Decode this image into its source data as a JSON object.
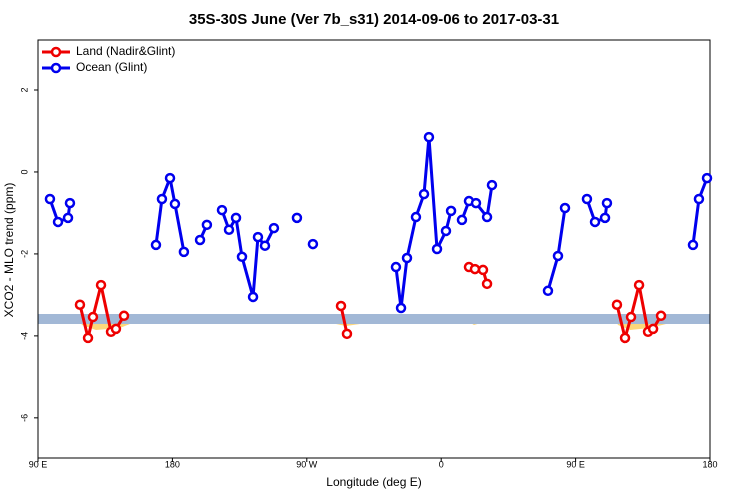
{
  "chart_data": {
    "type": "line",
    "title": "35S-30S June (Ver 7b_s31)   2014-09-06 to 2017-03-31",
    "x_label": "Longitude (deg E)",
    "y_label": "XCO2 - MLO trend (ppm)",
    "xlim": [
      90,
      540
    ],
    "ylim": [
      -6.98,
      3.22
    ],
    "xticks": [
      {
        "value": 90,
        "label": "90 E"
      },
      180,
      {
        "value": 270,
        "label": "90 W"
      },
      {
        "value": 360,
        "label": "0"
      },
      {
        "value": 450,
        "label": "90 E"
      },
      {
        "value": 540,
        "label": "180"
      }
    ],
    "yticks": [
      2,
      0,
      -2,
      -4,
      -6
    ],
    "legend": "top-left",
    "series": [
      {
        "name": "Land (Nadir&Glint)",
        "color": "#ee0000",
        "x": [
          118.1,
          123.5,
          126.8,
          132.2,
          138.9,
          142.2,
          147.6,
          null,
          292.9,
          296.9,
          null,
          378.6,
          382.6,
          388.0,
          390.7,
          null,
          477.7,
          483.1,
          487.1,
          492.5,
          498.5,
          501.9,
          507.2
        ],
        "values": [
          -3.24,
          -4.05,
          -3.54,
          -2.76,
          -3.9,
          -3.83,
          -3.51,
          null,
          -3.27,
          -3.95,
          null,
          -2.32,
          -2.37,
          -2.39,
          -2.73,
          null,
          -3.24,
          -4.05,
          -3.54,
          -2.76,
          -3.9,
          -3.83,
          -3.51
        ]
      },
      {
        "name": "Ocean (Glint)",
        "color": "#0000ee",
        "x": [
          98.0,
          103.4,
          110.1,
          111.4,
          null,
          169.0,
          173.0,
          178.4,
          181.7,
          187.7,
          null,
          198.5,
          203.1,
          null,
          213.2,
          217.9,
          222.6,
          226.6,
          234.0,
          237.3,
          242.0,
          248.0,
          null,
          263.4,
          null,
          274.1,
          null,
          329.7,
          333.1,
          337.1,
          343.1,
          348.5,
          351.8,
          357.2,
          363.2,
          366.6,
          null,
          373.9,
          378.6,
          383.3,
          390.7,
          394.0,
          null,
          431.5,
          438.2,
          442.9,
          null,
          457.6,
          463.0,
          469.7,
          471.0,
          null,
          528.6,
          532.6,
          538.0
        ],
        "values": [
          -0.66,
          -1.22,
          -1.12,
          -0.76,
          null,
          -1.78,
          -0.66,
          -0.15,
          -0.78,
          -1.95,
          null,
          -1.66,
          -1.29,
          null,
          -0.93,
          -1.41,
          -1.12,
          -2.07,
          -3.05,
          -1.59,
          -1.8,
          -1.37,
          null,
          -1.12,
          null,
          -1.76,
          null,
          -2.32,
          -3.32,
          -2.1,
          -1.1,
          -0.54,
          0.85,
          -1.88,
          -1.44,
          -0.95,
          null,
          -1.17,
          -0.71,
          -0.76,
          -1.1,
          -0.32,
          null,
          -2.9,
          -2.05,
          -0.88,
          null,
          -0.66,
          -1.22,
          -1.12,
          -0.76,
          null,
          -1.78,
          -0.66,
          -0.15
        ]
      }
    ]
  }
}
